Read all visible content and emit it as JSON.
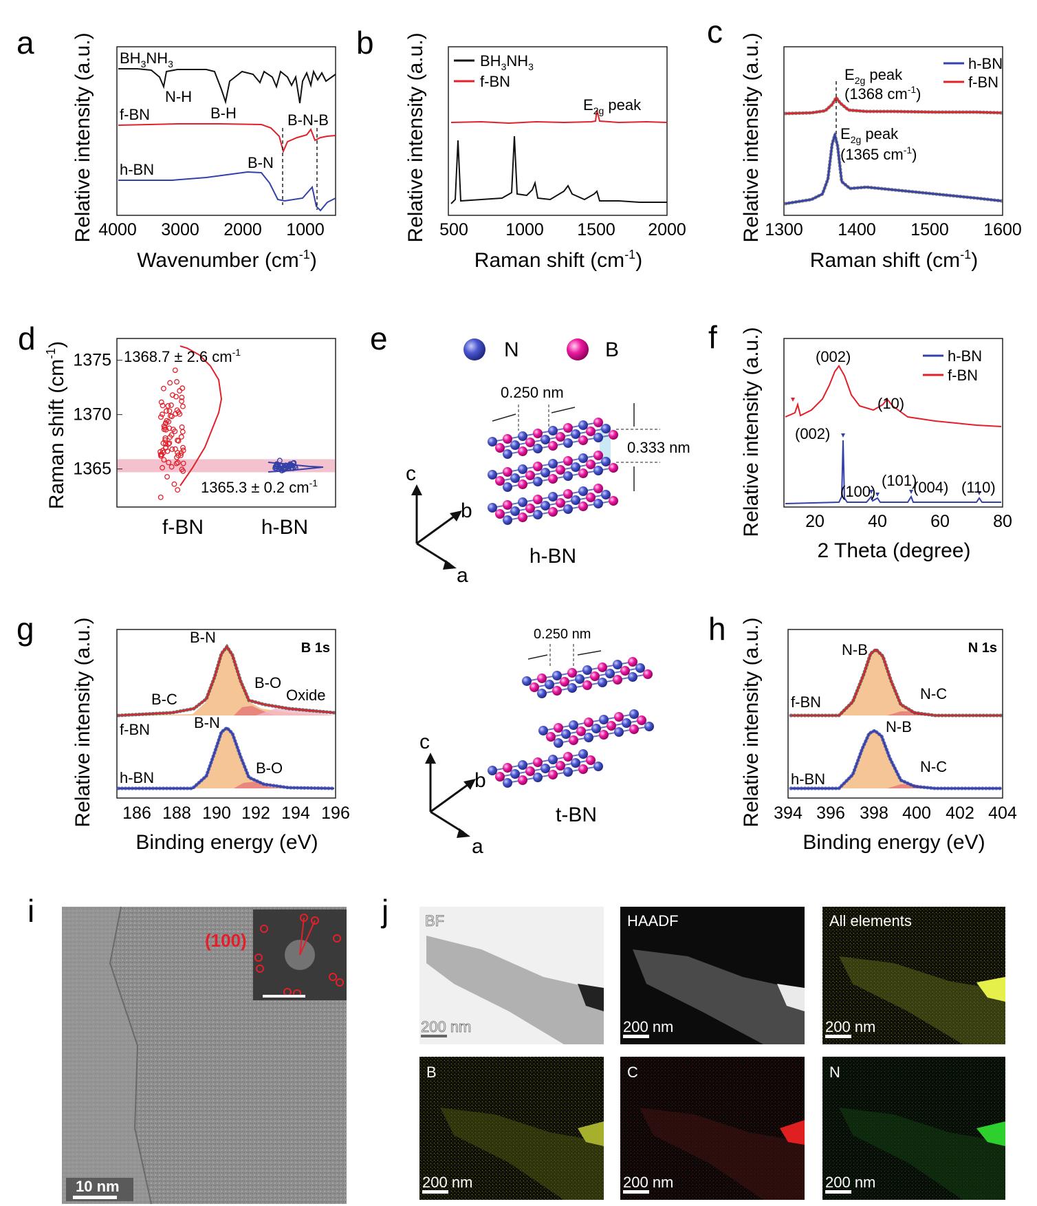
{
  "panel_letters": {
    "a": "a",
    "b": "b",
    "c": "c",
    "d": "d",
    "e": "e",
    "f": "f",
    "g": "g",
    "h": "h",
    "i": "i",
    "j": "j"
  },
  "colors": {
    "black": "#111111",
    "red": "#e3202a",
    "blue": "#3340a8",
    "pink": "#ec008c",
    "fill_orange": "#f6c596",
    "fill_red": "#e57777",
    "band_pink": "#f2b7c5",
    "light_blue": "#a6d8ef"
  },
  "chart_data": [
    {
      "panel": "a",
      "type": "line",
      "xlabel": "Wavenumber (cm",
      "xlabel_sup": "-1",
      "xlabel_end": ")",
      "ylabel": "Relative intensity (a.u.)",
      "xlim": [
        4000,
        500
      ],
      "x_ticks": [
        "4000",
        "3000",
        "2000",
        "1000"
      ],
      "series": [
        {
          "name": "BH3NH3",
          "label_main": "BH",
          "sub1": "3",
          "label_mid": "NH",
          "sub2": "3"
        },
        {
          "name": "f-BN"
        },
        {
          "name": "h-BN"
        }
      ],
      "annotations": [
        "N-H",
        "B-H",
        "B-N-B",
        "B-N"
      ]
    },
    {
      "panel": "b",
      "type": "line",
      "xlabel": "Raman shift (cm",
      "xlabel_sup": "-1",
      "xlabel_end": ")",
      "ylabel": "Relative intensity (a.u.)",
      "xlim": [
        500,
        2000
      ],
      "x_ticks": [
        "500",
        "1000",
        "1500",
        "2000"
      ],
      "series": [
        {
          "name": "BH3NH3",
          "legend_main": "BH",
          "sub1": "3",
          "legend_mid": "NH",
          "sub2": "3"
        },
        {
          "name": "f-BN"
        }
      ],
      "annotations": {
        "peak_main": "E",
        "peak_sub": "2g",
        "peak_end": " peak"
      }
    },
    {
      "panel": "c",
      "type": "line",
      "xlabel": "Raman shift (cm",
      "xlabel_sup": "-1",
      "xlabel_end": ")",
      "ylabel": "Relative intensity (a.u.)",
      "xlim": [
        1300,
        1600
      ],
      "x_ticks": [
        "1300",
        "1400",
        "1500",
        "1600"
      ],
      "series": [
        {
          "name": "h-BN"
        },
        {
          "name": "f-BN"
        }
      ],
      "annotations": {
        "peak_main": "E",
        "peak_sub": "2g",
        "peak_end": " peak",
        "fbn_value": "(1368 cm",
        "hbn_value": "(1365 cm",
        "sup": "-1",
        "close": ")"
      },
      "peaks": {
        "f-BN": 1368,
        "h-BN": 1365
      }
    },
    {
      "panel": "d",
      "type": "scatter",
      "ylabel": "Raman shift (cm",
      "ylabel_sup": "-1",
      "ylabel_end": ")",
      "ylim": [
        1361.5,
        1377
      ],
      "y_ticks": [
        "1365",
        "1370",
        "1375"
      ],
      "categories": [
        "f-BN",
        "h-BN"
      ],
      "annotations": {
        "fbn_text": "1368.7 ± 2.6 cm",
        "hbn_text": "1365.3 ± 0.2 cm",
        "sup": "-1"
      },
      "stats": {
        "f-BN": {
          "mean": 1368.7,
          "sd": 2.6
        },
        "h-BN": {
          "mean": 1365.3,
          "sd": 0.2
        }
      }
    },
    {
      "panel": "f",
      "type": "line",
      "xlabel": "2 Theta (degree)",
      "ylabel": "Relative intensity (a.u.)",
      "xlim": [
        10,
        80
      ],
      "x_ticks": [
        "20",
        "40",
        "60",
        "80"
      ],
      "series": [
        {
          "name": "h-BN"
        },
        {
          "name": "f-BN"
        }
      ],
      "annotations": [
        "(002)",
        "(10)",
        "(002)",
        "(100)",
        "(101)",
        "(004)",
        "(110)"
      ]
    },
    {
      "panel": "g",
      "type": "line",
      "xlabel": "Binding energy (eV)",
      "ylabel": "Relative intensity (a.u.)",
      "xlim": [
        185,
        196
      ],
      "x_ticks": [
        "186",
        "188",
        "190",
        "192",
        "194",
        "196"
      ],
      "corner_label": "B 1s",
      "series": [
        {
          "name": "f-BN"
        },
        {
          "name": "h-BN"
        }
      ],
      "annotations": [
        "B-N",
        "B-C",
        "B-O",
        "Oxide",
        "B-N",
        "B-O"
      ]
    },
    {
      "panel": "h",
      "type": "line",
      "xlabel": "Binding energy (eV)",
      "ylabel": "Relative intensity (a.u.)",
      "xlim": [
        394,
        404
      ],
      "x_ticks": [
        "394",
        "396",
        "398",
        "400",
        "402",
        "404"
      ],
      "corner_label": "N 1s",
      "series": [
        {
          "name": "f-BN"
        },
        {
          "name": "h-BN"
        }
      ],
      "annotations": [
        "N-B",
        "N-C",
        "N-B",
        "N-C"
      ]
    }
  ],
  "structure_e": {
    "legend_n": "N",
    "legend_b": "B",
    "spacing_in_plane": "0.250 nm",
    "spacing_interlayer": "0.333 nm",
    "axis_c": "c",
    "axis_b": "b",
    "axis_a": "a",
    "hbn_label": "h-BN",
    "tbn_spacing": "0.250 nm",
    "tbn_label": "t-BN"
  },
  "micrographs": {
    "i_scale": "10 nm",
    "i_fft_label": "(100)",
    "j_tiles": [
      "BF",
      "HAADF",
      "All elements",
      "B",
      "C",
      "N"
    ],
    "j_scale": "200 nm"
  }
}
